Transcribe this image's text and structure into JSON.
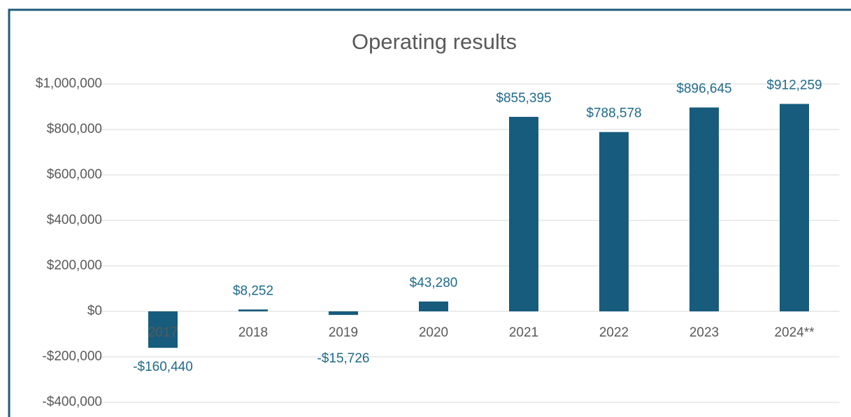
{
  "chart_data": {
    "type": "bar",
    "title": "Operating results",
    "categories": [
      "2017",
      "2018",
      "2019",
      "2020",
      "2021",
      "2022",
      "2023",
      "2024**"
    ],
    "values": [
      -160440,
      8252,
      -15726,
      43280,
      855395,
      788578,
      896645,
      912259
    ],
    "value_labels": [
      "-$160,440",
      "$8,252",
      "-$15,726",
      "$43,280",
      "$855,395",
      "$788,578",
      "$896,645",
      "$912,259"
    ],
    "color": "#175c7c",
    "ylim": [
      -400000,
      1000000
    ],
    "yticks": [
      {
        "value": -400000,
        "label": "-$400,000"
      },
      {
        "value": -200000,
        "label": "-$200,000"
      },
      {
        "value": 0,
        "label": "$0"
      },
      {
        "value": 200000,
        "label": "$200,000"
      },
      {
        "value": 400000,
        "label": "$400,000"
      },
      {
        "value": 600000,
        "label": "$600,000"
      },
      {
        "value": 800000,
        "label": "$800,000"
      },
      {
        "value": 1000000,
        "label": "$1,000,000"
      }
    ],
    "grid": true
  }
}
